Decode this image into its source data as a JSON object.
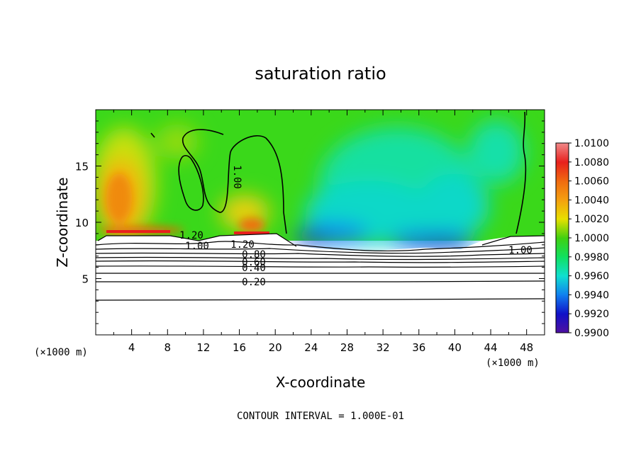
{
  "chart_data": {
    "type": "heatmap",
    "title": "saturation ratio",
    "xlabel": "X-coordinate",
    "ylabel": "Z-coordinate",
    "x_unit_left": "(×1000 m)",
    "x_unit_right": "(×1000 m)",
    "footer": "CONTOUR INTERVAL = 1.000E-01",
    "xlim": [
      0,
      50
    ],
    "ylim": [
      0,
      20
    ],
    "x_ticks": [
      "4",
      "8",
      "12",
      "16",
      "20",
      "24",
      "28",
      "32",
      "36",
      "40",
      "44",
      "48"
    ],
    "x_tick_values": [
      4,
      8,
      12,
      16,
      20,
      24,
      28,
      32,
      36,
      40,
      44,
      48
    ],
    "y_ticks": [
      "5",
      "10",
      "15"
    ],
    "y_tick_values": [
      5,
      10,
      15
    ],
    "colorbar": {
      "labels": [
        "1.0100",
        "1.0080",
        "1.0060",
        "1.0040",
        "1.0020",
        "1.0000",
        "0.9980",
        "0.9960",
        "0.9940",
        "0.9920",
        "0.9900"
      ],
      "values": [
        1.01,
        1.008,
        1.006,
        1.004,
        1.002,
        1.0,
        0.998,
        0.996,
        0.994,
        0.992,
        0.99
      ],
      "colors": [
        "#f08a8a",
        "#e8201c",
        "#f06a10",
        "#f4a010",
        "#e8e000",
        "#40d010",
        "#10e060",
        "#10e0d0",
        "#1080f0",
        "#1010c8",
        "#5010a0"
      ]
    },
    "contour_labels": [
      "1.00",
      "1.20",
      "1.00",
      "1.20",
      "0.80",
      "0.60",
      "0.40",
      "0.20",
      "1.00"
    ],
    "field": {
      "cloud_base_z": 8.8,
      "notes_levels": [
        0.2,
        0.4,
        0.6,
        0.8,
        1.0,
        1.2
      ]
    }
  }
}
